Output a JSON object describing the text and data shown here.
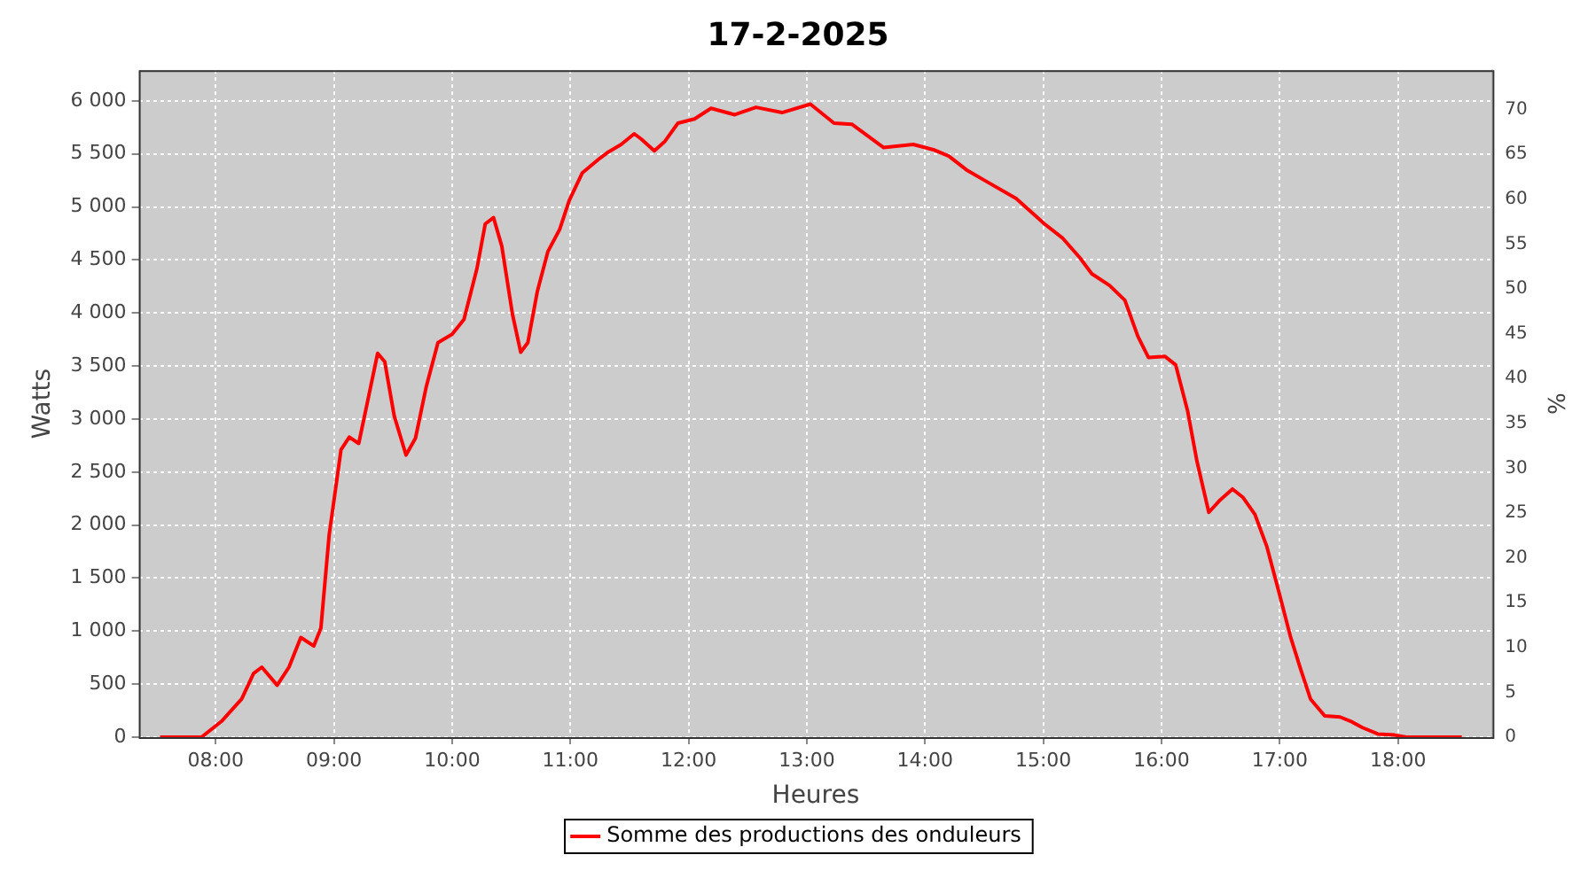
{
  "chart_data": {
    "type": "line",
    "title": "17-2-2025",
    "xlabel": "Heures",
    "ylabel": "Watts",
    "y2label": "%",
    "x": [
      7.53,
      7.88,
      8.05,
      8.22,
      8.32,
      8.39,
      8.52,
      8.62,
      8.72,
      8.83,
      8.89,
      8.96,
      9.06,
      9.13,
      9.21,
      9.28,
      9.37,
      9.43,
      9.51,
      9.61,
      9.69,
      9.78,
      9.88,
      10.0,
      10.1,
      10.21,
      10.28,
      10.35,
      10.42,
      10.51,
      10.58,
      10.64,
      10.72,
      10.81,
      10.91,
      10.99,
      11.1,
      11.25,
      11.31,
      11.43,
      11.54,
      11.6,
      11.71,
      11.8,
      11.91,
      12.05,
      12.19,
      12.39,
      12.57,
      12.79,
      13.03,
      13.23,
      13.38,
      13.65,
      13.9,
      14.07,
      14.2,
      14.35,
      14.52,
      14.77,
      14.95,
      15.01,
      15.16,
      15.31,
      15.41,
      15.56,
      15.69,
      15.8,
      15.89,
      16.03,
      16.12,
      16.22,
      16.3,
      16.4,
      16.49,
      16.6,
      16.69,
      16.79,
      16.89,
      16.99,
      17.09,
      17.18,
      17.26,
      17.38,
      17.51,
      17.6,
      17.7,
      17.83,
      17.97,
      18.07,
      18.54
    ],
    "series": [
      {
        "name": "Somme des productions des onduleurs",
        "color": "#ff0000",
        "values": [
          0,
          0,
          150,
          360,
          600,
          660,
          490,
          660,
          940,
          860,
          1030,
          1910,
          2710,
          2830,
          2770,
          3140,
          3620,
          3540,
          3030,
          2660,
          2820,
          3300,
          3720,
          3800,
          3940,
          4420,
          4840,
          4900,
          4630,
          3990,
          3630,
          3720,
          4200,
          4580,
          4790,
          5060,
          5320,
          5460,
          5510,
          5590,
          5690,
          5640,
          5530,
          5620,
          5790,
          5830,
          5930,
          5870,
          5940,
          5890,
          5970,
          5790,
          5780,
          5560,
          5590,
          5540,
          5480,
          5350,
          5240,
          5080,
          4900,
          4840,
          4710,
          4520,
          4370,
          4260,
          4120,
          3780,
          3580,
          3590,
          3510,
          3080,
          2600,
          2120,
          2230,
          2340,
          2260,
          2100,
          1800,
          1380,
          950,
          630,
          360,
          200,
          190,
          150,
          90,
          30,
          20,
          0,
          0
        ]
      }
    ],
    "xlim": [
      7.35,
      18.8
    ],
    "xticks": [
      {
        "value": 8,
        "label": "08:00"
      },
      {
        "value": 9,
        "label": "09:00"
      },
      {
        "value": 10,
        "label": "10:00"
      },
      {
        "value": 11,
        "label": "11:00"
      },
      {
        "value": 12,
        "label": "12:00"
      },
      {
        "value": 13,
        "label": "13:00"
      },
      {
        "value": 14,
        "label": "14:00"
      },
      {
        "value": 15,
        "label": "15:00"
      },
      {
        "value": 16,
        "label": "16:00"
      },
      {
        "value": 17,
        "label": "17:00"
      },
      {
        "value": 18,
        "label": "18:00"
      }
    ],
    "ylim": [
      0,
      6290
    ],
    "yticks": [
      0,
      500,
      {
        "value": 1000,
        "label": "1 000"
      },
      {
        "value": 1500,
        "label": "1 500"
      },
      {
        "value": 2000,
        "label": "2 000"
      },
      {
        "value": 2500,
        "label": "2 500"
      },
      {
        "value": 3000,
        "label": "3 000"
      },
      {
        "value": 3500,
        "label": "3 500"
      },
      {
        "value": 4000,
        "label": "4 000"
      },
      {
        "value": 4500,
        "label": "4 500"
      },
      {
        "value": 5000,
        "label": "5 000"
      },
      {
        "value": 5500,
        "label": "5 500"
      },
      {
        "value": 6000,
        "label": "6 000"
      }
    ],
    "y2lim": [
      0,
      74.4
    ],
    "y2ticks": [
      0,
      5,
      10,
      15,
      20,
      25,
      30,
      35,
      40,
      45,
      50,
      55,
      60,
      65,
      70
    ],
    "grid": true,
    "legend": "bottom",
    "marker": "none",
    "line_style": "solid"
  }
}
